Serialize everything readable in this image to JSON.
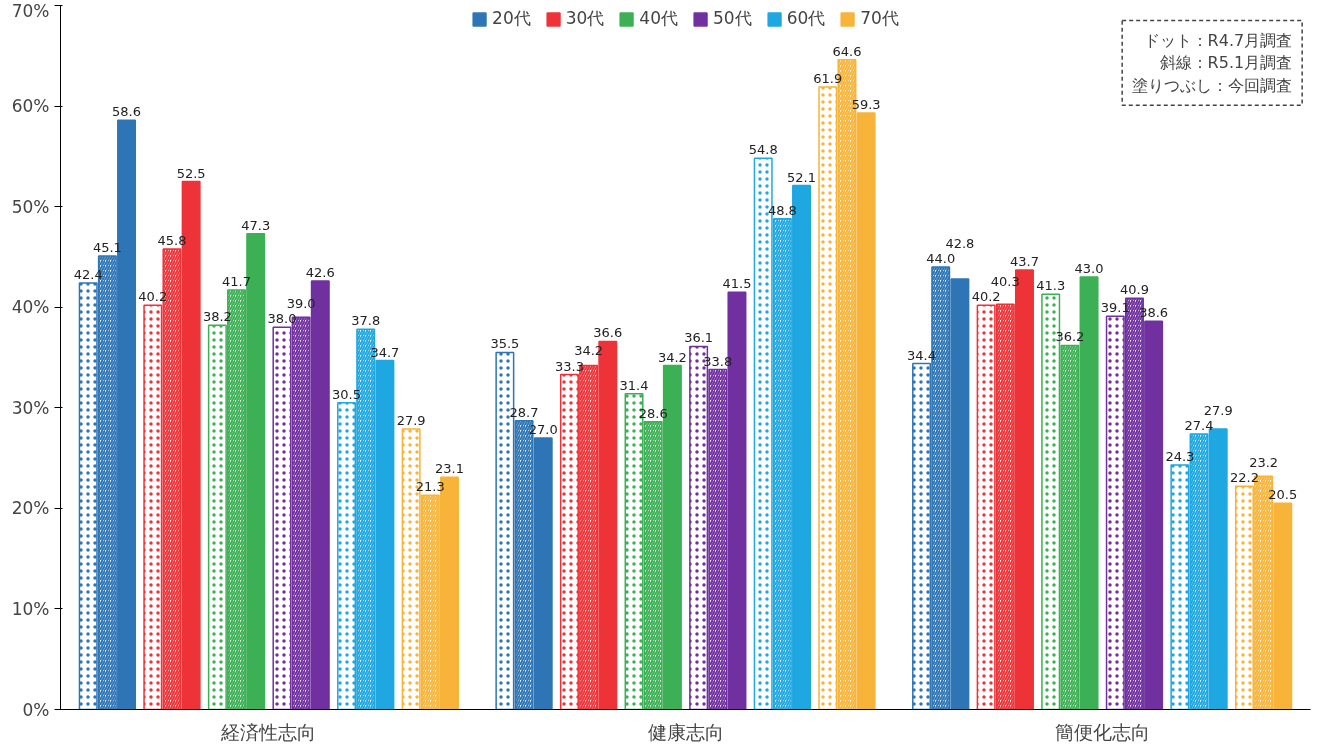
{
  "chart_data": {
    "type": "bar",
    "categories": [
      "経済性志向",
      "健康志向",
      "簡便化志向"
    ],
    "ylim": [
      0,
      70
    ],
    "yticks": [
      {
        "value": 0,
        "label": "0%"
      },
      {
        "value": 10,
        "label": "10%"
      },
      {
        "value": 20,
        "label": "20%"
      },
      {
        "value": 30,
        "label": "30%"
      },
      {
        "value": 40,
        "label": "40%"
      },
      {
        "value": 50,
        "label": "50%"
      },
      {
        "value": 60,
        "label": "60%"
      },
      {
        "value": 70,
        "label": "70%"
      }
    ],
    "grid": false,
    "legend": "top",
    "annotations": [
      "ドット：R4.7月調査",
      "斜線：R5.1月調査",
      "塗りつぶし：今回調査"
    ],
    "series": [
      {
        "color": "#2e75b6",
        "values": [
          42.4,
          35.5,
          34.4
        ],
        "value_labels": [
          "42.4",
          "35.5",
          "34.4"
        ]
      },
      {
        "color": "#2e75b6",
        "values": [
          45.1,
          28.7,
          44.0
        ],
        "value_labels": [
          "45.1",
          "28.7",
          "44.0"
        ]
      },
      {
        "name": "20代",
        "color": "#2e75b6",
        "values": [
          58.6,
          27.0,
          42.8
        ],
        "value_labels": [
          "58.6",
          "27.0",
          "42.8"
        ]
      },
      {
        "color": "#ee3338",
        "values": [
          40.2,
          33.3,
          40.2
        ],
        "value_labels": [
          "40.2",
          "33.3",
          "40.2"
        ]
      },
      {
        "color": "#ee3338",
        "values": [
          45.8,
          34.2,
          40.3
        ],
        "value_labels": [
          "45.8",
          "34.2",
          "40.3"
        ]
      },
      {
        "name": "30代",
        "color": "#ee3338",
        "values": [
          52.5,
          36.6,
          43.7
        ],
        "value_labels": [
          "52.5",
          "36.6",
          "43.7"
        ]
      },
      {
        "color": "#3cb054",
        "values": [
          38.2,
          31.4,
          41.3
        ],
        "value_labels": [
          "38.2",
          "31.4",
          "41.3"
        ]
      },
      {
        "color": "#3cb054",
        "values": [
          41.7,
          28.6,
          36.2
        ],
        "value_labels": [
          "41.7",
          "28.6",
          "36.2"
        ]
      },
      {
        "name": "40代",
        "color": "#3cb054",
        "values": [
          47.3,
          34.2,
          43.0
        ],
        "value_labels": [
          "47.3",
          "34.2",
          "43.0"
        ]
      },
      {
        "color": "#7030a0",
        "values": [
          38.0,
          36.1,
          39.1
        ],
        "value_labels": [
          "38.0",
          "36.1",
          "39.1"
        ]
      },
      {
        "color": "#7030a0",
        "values": [
          39.0,
          33.8,
          40.9
        ],
        "value_labels": [
          "39.0",
          "33.8",
          "40.9"
        ]
      },
      {
        "name": "50代",
        "color": "#7030a0",
        "values": [
          42.6,
          41.5,
          38.6
        ],
        "value_labels": [
          "42.6",
          "41.5",
          "38.6"
        ]
      },
      {
        "color": "#1ea7e1",
        "values": [
          30.5,
          54.8,
          24.3
        ],
        "value_labels": [
          "30.5",
          "54.8",
          "24.3"
        ]
      },
      {
        "color": "#1ea7e1",
        "values": [
          37.8,
          48.8,
          27.4
        ],
        "value_labels": [
          "37.8",
          "48.8",
          "27.4"
        ]
      },
      {
        "name": "60代",
        "color": "#1ea7e1",
        "values": [
          34.7,
          52.1,
          27.9
        ],
        "value_labels": [
          "34.7",
          "52.1",
          "27.9"
        ]
      },
      {
        "color": "#f7b438",
        "values": [
          27.9,
          61.9,
          22.2
        ],
        "value_labels": [
          "27.9",
          "61.9",
          "22.2"
        ]
      },
      {
        "color": "#f7b438",
        "values": [
          21.3,
          64.6,
          23.2
        ],
        "value_labels": [
          "21.3",
          "64.6",
          "23.2"
        ]
      },
      {
        "name": "70代",
        "color": "#f7b438",
        "values": [
          23.1,
          59.3,
          20.5
        ],
        "value_labels": [
          "23.1",
          "59.3",
          "20.5"
        ]
      }
    ]
  }
}
